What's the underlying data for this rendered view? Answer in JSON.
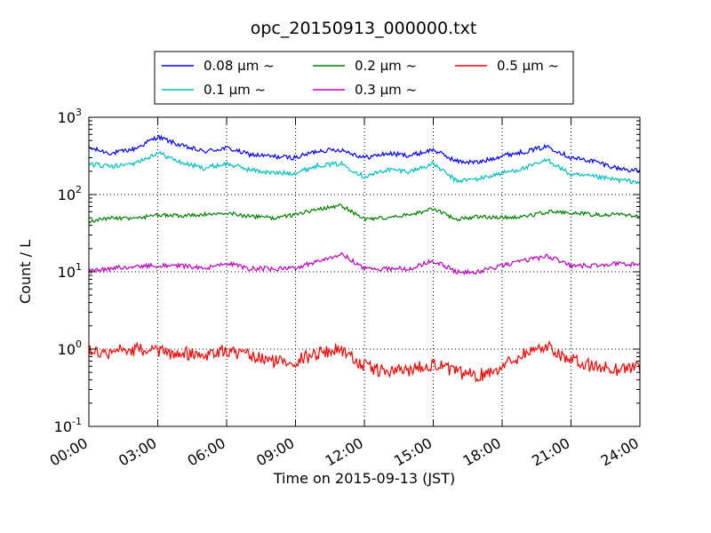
{
  "chart_data": {
    "type": "line",
    "title": "opc_20150913_000000.txt",
    "xlabel": "Time on 2015-09-13 (JST)",
    "ylabel": "Count / L",
    "yscale": "log",
    "ylim": [
      0.1,
      1000
    ],
    "xlim": [
      "00:00",
      "24:00"
    ],
    "x_ticks": [
      "00:00",
      "03:00",
      "06:00",
      "09:00",
      "12:00",
      "15:00",
      "18:00",
      "21:00",
      "24:00"
    ],
    "y_ticks": [
      {
        "base": "10",
        "exp": "-1",
        "value": 0.1
      },
      {
        "base": "10",
        "exp": "0",
        "value": 1
      },
      {
        "base": "10",
        "exp": "1",
        "value": 10
      },
      {
        "base": "10",
        "exp": "2",
        "value": 100
      },
      {
        "base": "10",
        "exp": "3",
        "value": 1000
      }
    ],
    "grid": true,
    "legend_position": "top-center",
    "x_hours": [
      0,
      1,
      2,
      3,
      4,
      5,
      6,
      7,
      8,
      9,
      10,
      11,
      12,
      13,
      14,
      15,
      16,
      17,
      18,
      19,
      20,
      21,
      22,
      23,
      24
    ],
    "series": [
      {
        "name": "0.08 μm ~",
        "color": "#0000ff",
        "values": [
          400,
          340,
          390,
          560,
          430,
          360,
          400,
          330,
          310,
          300,
          370,
          380,
          300,
          340,
          320,
          380,
          270,
          260,
          320,
          360,
          420,
          300,
          270,
          220,
          200
        ]
      },
      {
        "name": "0.1 μm ~",
        "color": "#00bfbf",
        "values": [
          250,
          230,
          250,
          350,
          260,
          220,
          250,
          210,
          190,
          190,
          240,
          250,
          170,
          210,
          200,
          250,
          150,
          160,
          190,
          220,
          280,
          180,
          170,
          155,
          145
        ]
      },
      {
        "name": "0.2 μm ~",
        "color": "#008000",
        "values": [
          45,
          50,
          48,
          55,
          53,
          55,
          58,
          52,
          50,
          55,
          65,
          72,
          48,
          50,
          55,
          65,
          48,
          52,
          50,
          52,
          60,
          58,
          55,
          55,
          53
        ]
      },
      {
        "name": "0.3 μm ~",
        "color": "#bf00bf",
        "values": [
          10,
          11,
          12,
          12,
          12,
          11,
          13,
          11,
          11,
          11,
          14,
          17,
          11,
          11,
          11,
          14,
          10,
          10,
          12,
          14,
          16,
          12,
          12,
          13,
          12
        ]
      },
      {
        "name": "0.5 μm ~",
        "color": "#ff0000",
        "values": [
          1.0,
          0.9,
          1.0,
          0.9,
          0.9,
          0.85,
          0.95,
          0.8,
          0.7,
          0.7,
          0.9,
          1.0,
          0.6,
          0.5,
          0.55,
          0.65,
          0.5,
          0.45,
          0.6,
          0.9,
          1.1,
          0.7,
          0.6,
          0.55,
          0.6
        ]
      }
    ]
  }
}
